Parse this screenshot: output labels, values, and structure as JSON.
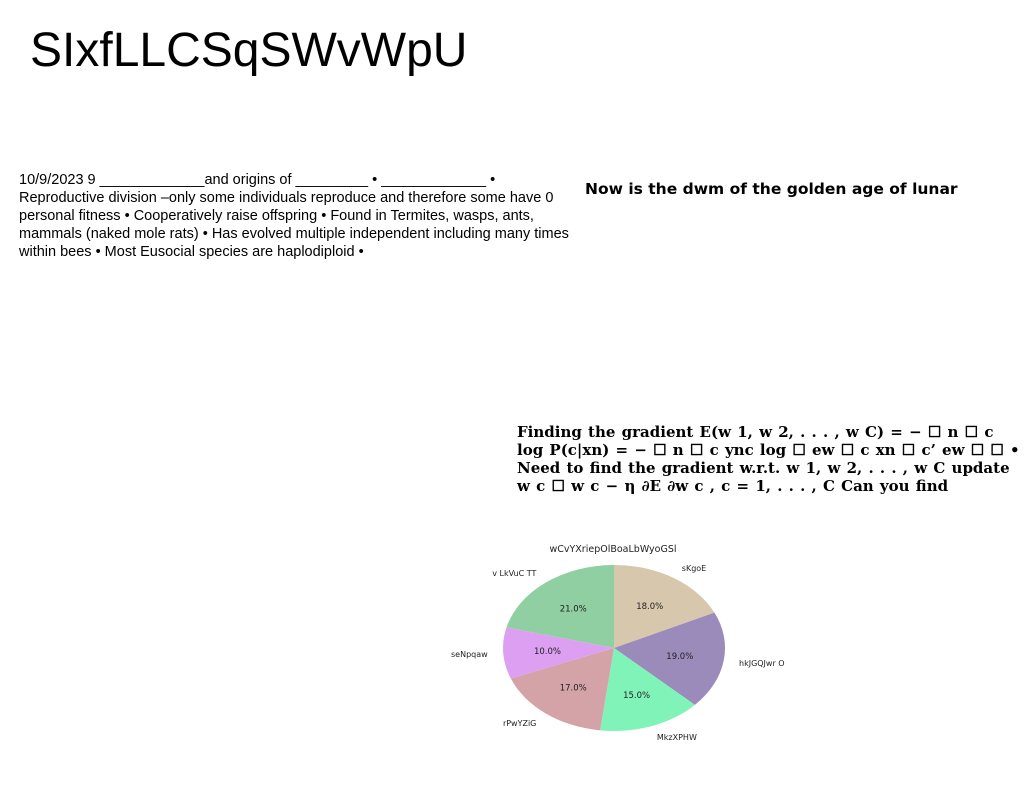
{
  "page": {
    "title": "SIxfLLCSqSWvWpU"
  },
  "blocks": {
    "left_text": "10/9/2023 9 _____________and origins of _________ • _____________ • Reproductive division –only some individuals reproduce and therefore some have 0 personal fitness • Cooperatively raise offspring • Found in Termites, wasps, ants, mammals (naked mole rats) • Has evolved multiple independent including many times within bees • Most Eusocial species are haplodiploid •",
    "lunar_text": "Now is the dwm of the  golden age of lunar",
    "gradient_text": "Finding the gradient E(w 1, w 2, . . . , w C) = − ☐ n ☐ c log P(c|xn) = − ☐ n ☐ c ync log ☐ ew ☐ c xn ☐ c’ ew ☐ ☐ • Need to find the gradient w.r.t. w 1, w 2, . . . , w C update w c ☐ w c − η ∂E ∂w c , c = 1, . . . , C Can you find"
  },
  "chart_data": {
    "type": "pie",
    "title": "wCvYXriepOlBoaLbWyoGSl",
    "categories": [
      "sKgoE",
      "hkJGQJwr O",
      "MkzXPHW",
      "rPwYZiG",
      "seNpqaw",
      "v LkVuC TT"
    ],
    "values": [
      18.0,
      19.0,
      15.0,
      17.0,
      10.0,
      21.0
    ],
    "value_labels": [
      "18.0%",
      "19.0%",
      "15.0%",
      "17.0%",
      "10.0%",
      "21.0%"
    ],
    "colors": [
      "#d6c7ad",
      "#9a8bbb",
      "#80f3b9",
      "#d4a3a8",
      "#dc9ff2",
      "#8fcfa2"
    ],
    "start_angle_deg": 90,
    "direction": "clockwise"
  }
}
